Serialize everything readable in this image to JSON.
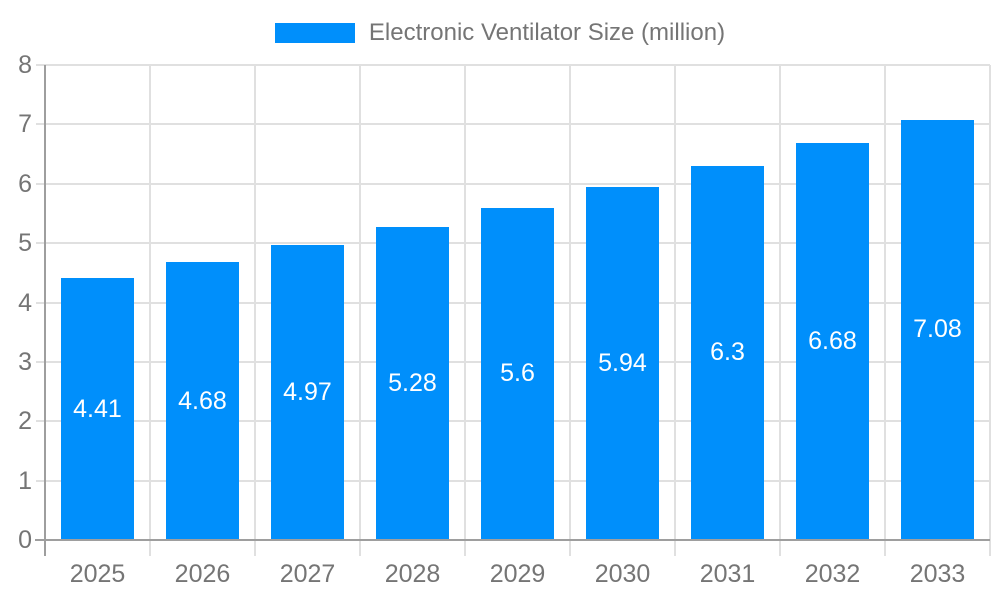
{
  "chart_data": {
    "type": "bar",
    "title": "Electronic Ventilator Size (million)",
    "legend": {
      "label": "Electronic Ventilator Size (million)",
      "position": "top",
      "marker_color": "#008FFB"
    },
    "categories": [
      "2025",
      "2026",
      "2027",
      "2028",
      "2029",
      "2030",
      "2031",
      "2032",
      "2033"
    ],
    "series": [
      {
        "name": "Electronic Ventilator Size (million)",
        "values": [
          4.41,
          4.68,
          4.97,
          5.28,
          5.6,
          5.94,
          6.3,
          6.68,
          7.08
        ]
      }
    ],
    "value_labels": [
      "4.41",
      "4.68",
      "4.97",
      "5.28",
      "5.6",
      "5.94",
      "6.3",
      "6.68",
      "7.08"
    ],
    "xlabel": "",
    "ylabel": "",
    "ylim": [
      0,
      8
    ],
    "y_ticks": [
      0,
      1,
      2,
      3,
      4,
      5,
      6,
      7,
      8
    ],
    "grid": true,
    "bar_width_fraction": 0.7,
    "colors": {
      "bar": "#008FFB",
      "value_label": "#ffffff",
      "gridline": "#e0e0e0",
      "axis": "#9e9e9e",
      "text": "#757575",
      "background": "#ffffff"
    }
  }
}
